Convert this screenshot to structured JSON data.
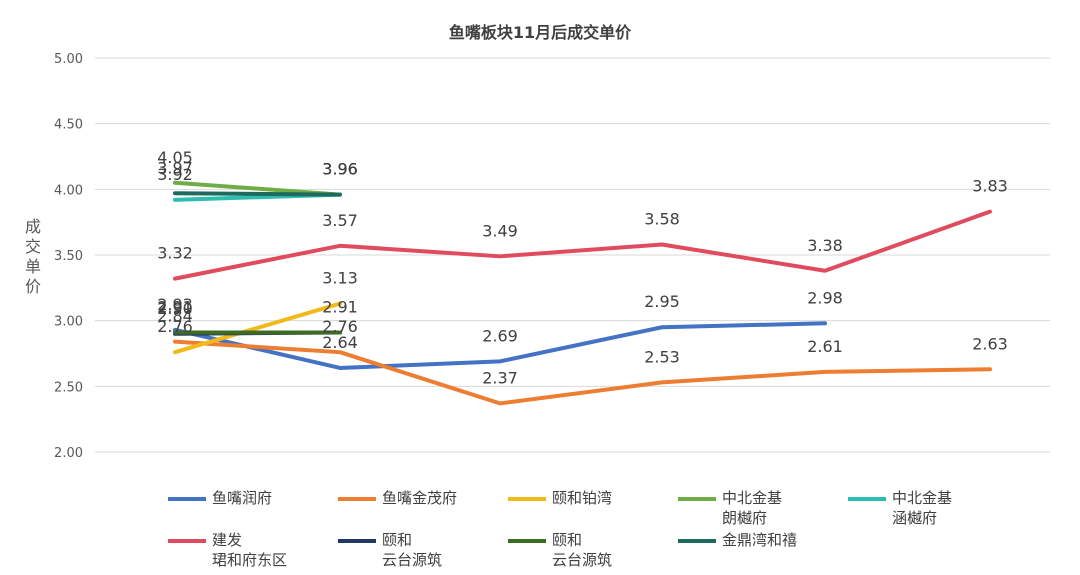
{
  "chart_data": {
    "type": "line",
    "title": "鱼嘴板块11月后成交单价",
    "ylabel": "成交单价",
    "xlabel": "",
    "ylim": [
      2.0,
      5.0
    ],
    "yticks": [
      "2.00",
      "2.50",
      "3.00",
      "3.50",
      "4.00",
      "4.50",
      "5.00"
    ],
    "grid": "horizontal",
    "legend_position": "bottom",
    "series": [
      {
        "name": "鱼嘴润府",
        "color": "#4472C4",
        "values": [
          2.93,
          2.64,
          2.69,
          2.95,
          2.98,
          null
        ],
        "labels": [
          "2.93",
          "2.64",
          "2.69",
          "2.95",
          "2.98",
          ""
        ]
      },
      {
        "name": "鱼嘴金茂府",
        "color": "#ED7D31",
        "values": [
          2.84,
          2.76,
          2.37,
          2.53,
          2.61,
          2.63
        ],
        "labels": [
          "2.84",
          "2.76",
          "2.37",
          "2.53",
          "2.61",
          "2.63"
        ]
      },
      {
        "name": "颐和铂湾",
        "color": "#F0BA19",
        "values": [
          2.76,
          3.13,
          null,
          null,
          null,
          null
        ],
        "labels": [
          "2.76",
          "3.13",
          "",
          "",
          "",
          ""
        ]
      },
      {
        "name": "中北金基\n朗樾府",
        "color": "#70AD47",
        "values": [
          4.05,
          3.96,
          null,
          null,
          null,
          null
        ],
        "labels": [
          "4.05",
          "3.96",
          "",
          "",
          "",
          ""
        ]
      },
      {
        "name": "中北金基\n涵樾府",
        "color": "#2DBDB1",
        "values": [
          3.92,
          3.96,
          null,
          null,
          null,
          null
        ],
        "labels": [
          "3.92",
          "3.96",
          "",
          "",
          "",
          ""
        ]
      },
      {
        "name": "建发\n珺和府东区",
        "color": "#E04B5E",
        "values": [
          3.32,
          3.57,
          3.49,
          3.58,
          3.38,
          3.83
        ],
        "labels": [
          "3.32",
          "3.57",
          "3.49",
          "3.58",
          "3.38",
          "3.83"
        ]
      },
      {
        "name": "颐和\n云台源筑",
        "color": "#1F3864",
        "values": [
          2.9,
          2.91,
          null,
          null,
          null,
          null
        ],
        "labels": [
          "2.90",
          "2.91",
          "",
          "",
          "",
          ""
        ]
      },
      {
        "name": "颐和\n云台源筑",
        "color": "#3D6B22",
        "values": [
          2.91,
          2.91,
          null,
          null,
          null,
          null
        ],
        "labels": [
          "2.91",
          "",
          "",
          "",
          "",
          ""
        ]
      },
      {
        "name": "金鼎湾和禧",
        "color": "#1E6B5E",
        "values": [
          3.97,
          3.96,
          null,
          null,
          null,
          null
        ],
        "labels": [
          "3.97",
          "3.96",
          "",
          "",
          "",
          ""
        ]
      }
    ]
  }
}
